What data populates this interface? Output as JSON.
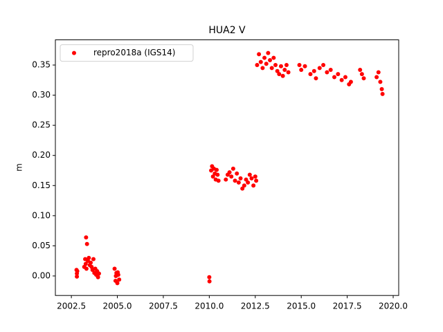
{
  "chart_data": {
    "type": "scatter",
    "title": "HUA2 V",
    "y_label": "m",
    "series": [
      {
        "name": "repro2018a (IGS14)",
        "color": "#ff0000",
        "x": [
          2002.78,
          2002.8,
          2002.8,
          2002.82,
          2003.2,
          2003.25,
          2003.28,
          2003.3,
          2003.32,
          2003.35,
          2003.4,
          2003.45,
          2003.5,
          2003.55,
          2003.6,
          2003.65,
          2003.7,
          2003.75,
          2003.8,
          2003.85,
          2003.9,
          2003.95,
          2004.0,
          2004.85,
          2004.9,
          2004.95,
          2005.0,
          2005.05,
          2005.1,
          2004.92,
          2005.02,
          2010.0,
          2010.01,
          2010.1,
          2010.15,
          2010.2,
          2010.25,
          2010.3,
          2010.35,
          2010.4,
          2010.45,
          2010.5,
          2010.9,
          2011.0,
          2011.1,
          2011.2,
          2011.3,
          2011.4,
          2011.5,
          2011.6,
          2011.7,
          2011.8,
          2011.9,
          2012.0,
          2012.1,
          2012.2,
          2012.3,
          2012.4,
          2012.5,
          2012.55,
          2012.6,
          2012.7,
          2012.8,
          2012.9,
          2013.0,
          2013.1,
          2013.2,
          2013.3,
          2013.4,
          2013.5,
          2013.6,
          2013.7,
          2013.8,
          2013.9,
          2014.0,
          2014.1,
          2014.2,
          2014.3,
          2014.9,
          2015.0,
          2015.2,
          2015.5,
          2015.7,
          2015.8,
          2016.0,
          2016.2,
          2016.4,
          2016.6,
          2016.8,
          2017.0,
          2017.2,
          2017.4,
          2017.6,
          2017.7,
          2018.2,
          2018.3,
          2018.4,
          2019.1,
          2019.2,
          2019.3,
          2019.38,
          2019.42
        ],
        "values": [
          0.01,
          0.004,
          -0.001,
          0.008,
          0.015,
          0.028,
          0.02,
          0.064,
          0.012,
          0.053,
          0.025,
          0.03,
          0.018,
          0.022,
          0.015,
          0.01,
          0.028,
          0.005,
          0.012,
          0.002,
          0.008,
          -0.002,
          0.004,
          0.012,
          -0.008,
          0.005,
          -0.012,
          0.002,
          -0.006,
          0.0,
          0.006,
          -0.002,
          -0.009,
          0.175,
          0.182,
          0.165,
          0.178,
          0.17,
          0.16,
          0.176,
          0.168,
          0.158,
          0.16,
          0.168,
          0.172,
          0.165,
          0.178,
          0.158,
          0.17,
          0.155,
          0.162,
          0.145,
          0.15,
          0.16,
          0.155,
          0.168,
          0.162,
          0.15,
          0.165,
          0.158,
          0.35,
          0.368,
          0.355,
          0.345,
          0.362,
          0.352,
          0.37,
          0.358,
          0.345,
          0.362,
          0.35,
          0.34,
          0.335,
          0.348,
          0.332,
          0.342,
          0.35,
          0.338,
          0.35,
          0.342,
          0.348,
          0.335,
          0.34,
          0.328,
          0.345,
          0.35,
          0.338,
          0.342,
          0.33,
          0.335,
          0.325,
          0.33,
          0.318,
          0.322,
          0.342,
          0.335,
          0.328,
          0.33,
          0.338,
          0.322,
          0.31,
          0.302
        ]
      }
    ],
    "xlim": [
      2001.63,
      2020.3
    ],
    "xticks": [
      2002.5,
      {
        "value": 2005,
        "label": "2005.0"
      },
      2007.5,
      {
        "value": 2010,
        "label": "2010.0"
      },
      2012.5,
      {
        "value": 2015,
        "label": "2015.0"
      },
      2017.5,
      {
        "value": 2020,
        "label": "2020.0"
      }
    ],
    "ylim": [
      -0.0324,
      0.3918
    ],
    "yticks": [
      {
        "value": 0,
        "label": "0.00"
      },
      0.05,
      {
        "value": 0.1,
        "label": "0.10"
      },
      0.15,
      {
        "value": 0.2,
        "label": "0.20"
      },
      0.25,
      {
        "value": 0.3,
        "label": "0.30"
      },
      0.35
    ],
    "grid": false,
    "legend": "upper-left"
  }
}
